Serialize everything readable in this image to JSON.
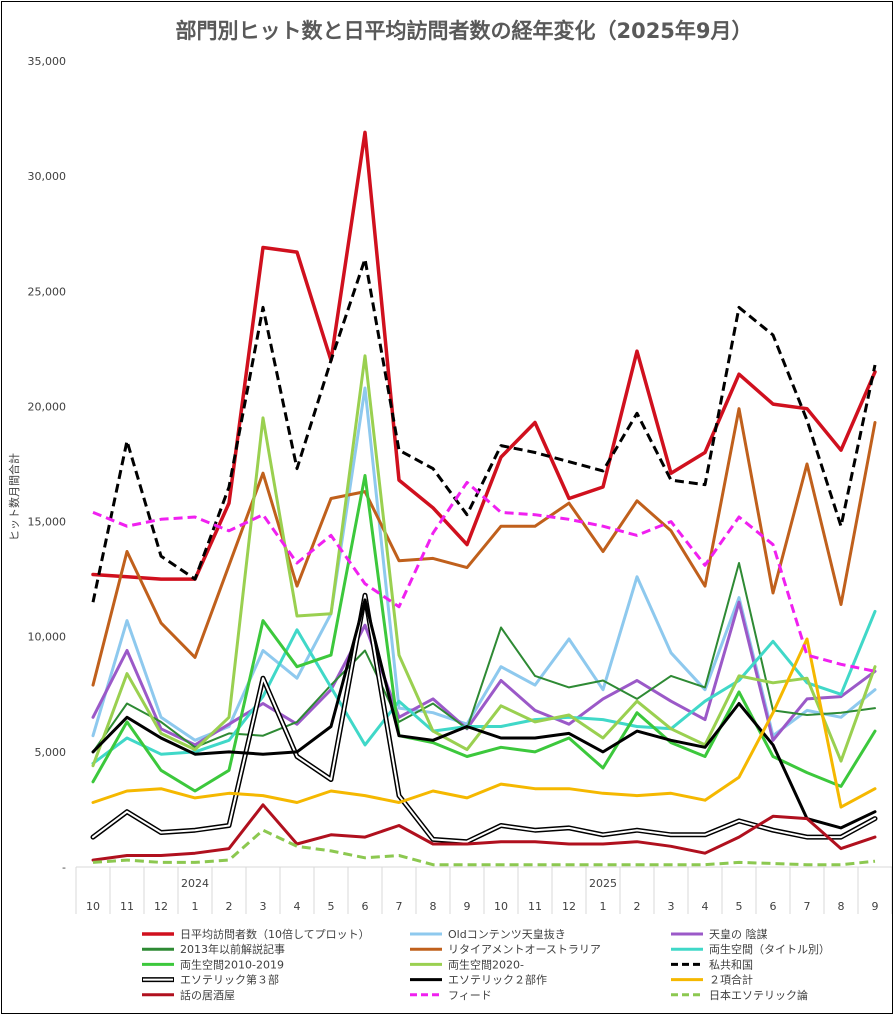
{
  "chart_data": {
    "type": "line",
    "title": "部門別ヒット数と日平均訪問者数の経年変化（2025年9月）",
    "ylabel": "ヒット数月間合計",
    "xlabel": "",
    "ylim": [
      0,
      35000
    ],
    "yticks": [
      {
        "value": 0,
        "label": "-"
      },
      {
        "value": 5000,
        "label": "5,000"
      },
      {
        "value": 10000,
        "label": "10,000"
      },
      {
        "value": 15000,
        "label": "15,000"
      },
      {
        "value": 20000,
        "label": "20,000"
      },
      {
        "value": 25000,
        "label": "25,000"
      },
      {
        "value": 30000,
        "label": "30,000"
      },
      {
        "value": 35000,
        "label": "35,000"
      }
    ],
    "categories": [
      "10",
      "11",
      "12",
      "1",
      "2",
      "3",
      "4",
      "5",
      "6",
      "7",
      "8",
      "9",
      "10",
      "11",
      "12",
      "1",
      "2",
      "3",
      "4",
      "5",
      "6",
      "7",
      "8",
      "9"
    ],
    "year_labels": [
      {
        "label": "2024",
        "index": 3
      },
      {
        "label": "2025",
        "index": 15
      }
    ],
    "grid": false,
    "legend_placement": "bottom",
    "series": [
      {
        "name": "日平均訪問者数（10倍してプロット）",
        "color": "#d0101e",
        "width": 3.5,
        "style": "solid",
        "values": [
          12700,
          12600,
          12500,
          12500,
          15800,
          26900,
          26700,
          22000,
          31900,
          16800,
          15600,
          14000,
          17800,
          19300,
          16000,
          16500,
          22400,
          17100,
          18000,
          21400,
          20100,
          19900,
          18100,
          21500
        ]
      },
      {
        "name": "Oldコンテンツ天皇抜き",
        "color": "#8ec9ee",
        "width": 3,
        "style": "solid",
        "values": [
          5700,
          10700,
          6500,
          5500,
          6100,
          9400,
          8200,
          11000,
          20800,
          6900,
          6700,
          6200,
          8700,
          7900,
          9900,
          7700,
          12600,
          9300,
          7700,
          11700,
          5700,
          6800,
          6500,
          7700
        ]
      },
      {
        "name": "天皇の 陰謀",
        "color": "#9b59c8",
        "width": 3,
        "style": "solid",
        "values": [
          6500,
          9400,
          6000,
          5300,
          6200,
          7100,
          6200,
          7700,
          10500,
          6500,
          7300,
          6000,
          8100,
          6800,
          6200,
          7300,
          8100,
          7200,
          6400,
          11500,
          5500,
          7300,
          7400,
          8500
        ]
      },
      {
        "name": "2013年以前解説記事",
        "color": "#2e8a34",
        "width": 2,
        "style": "solid",
        "values": [
          5000,
          7100,
          6300,
          5200,
          5800,
          5700,
          6300,
          7900,
          9400,
          6300,
          7100,
          6000,
          10400,
          8300,
          7800,
          8100,
          7300,
          8300,
          7800,
          13200,
          6800,
          6600,
          6700,
          6900
        ]
      },
      {
        "name": "リタイアメントオーストラリア",
        "color": "#c0601c",
        "width": 3,
        "style": "solid",
        "values": [
          7900,
          13700,
          10600,
          9100,
          13100,
          17100,
          12200,
          16000,
          16300,
          13300,
          13400,
          13000,
          14800,
          14800,
          15800,
          13700,
          15900,
          14600,
          12200,
          19900,
          11900,
          17500,
          11400,
          19300
        ]
      },
      {
        "name": "両生空間（タイトル別）",
        "color": "#40d8c8",
        "width": 3,
        "style": "solid",
        "values": [
          4500,
          5600,
          4900,
          5000,
          5500,
          7400,
          10300,
          7800,
          5300,
          7200,
          5900,
          6100,
          6100,
          6400,
          6500,
          6400,
          6100,
          6000,
          7200,
          8100,
          9800,
          8000,
          7500,
          11100
        ]
      },
      {
        "name": "両生空間2010-2019",
        "color": "#3cc83c",
        "width": 3,
        "style": "solid",
        "values": [
          3700,
          6300,
          4200,
          3300,
          4200,
          10700,
          8700,
          9200,
          17000,
          5700,
          5400,
          4800,
          5200,
          5000,
          5600,
          4300,
          6700,
          5400,
          4800,
          7600,
          4800,
          4100,
          3500,
          5900
        ]
      },
      {
        "name": "両生空間2020-",
        "color": "#9ad050",
        "width": 3,
        "style": "solid",
        "values": [
          4400,
          8400,
          5800,
          5100,
          6500,
          19500,
          10900,
          11000,
          22200,
          9200,
          5900,
          5100,
          7000,
          6300,
          6600,
          5600,
          7200,
          6000,
          5300,
          8300,
          8000,
          8200,
          4600,
          8700
        ]
      },
      {
        "name": "私共和国",
        "color": "#000000",
        "width": 3,
        "style": "dash",
        "values": [
          11500,
          18500,
          13500,
          12500,
          16500,
          24300,
          17300,
          22000,
          26400,
          18100,
          17300,
          15300,
          18300,
          18000,
          17600,
          17200,
          19700,
          16800,
          16600,
          24300,
          23100,
          19400,
          14800,
          21800
        ]
      },
      {
        "name": "エソテリック第３部",
        "color": "#000000",
        "width": 3.5,
        "style": "double",
        "values": [
          1300,
          2400,
          1500,
          1600,
          1800,
          8200,
          4800,
          3800,
          11800,
          3100,
          1200,
          1100,
          1800,
          1600,
          1700,
          1400,
          1600,
          1400,
          1400,
          2000,
          1600,
          1300,
          1300,
          2100
        ]
      },
      {
        "name": "エソテリック２部作",
        "color": "#000000",
        "width": 3,
        "style": "solid",
        "values": [
          5000,
          6500,
          5600,
          4900,
          5000,
          4900,
          5000,
          6100,
          11600,
          5700,
          5500,
          6100,
          5600,
          5600,
          5800,
          5000,
          5900,
          5500,
          5200,
          7100,
          5300,
          2100,
          1700,
          2400
        ]
      },
      {
        "name": "２項合計",
        "color": "#f5b800",
        "width": 3,
        "style": "solid",
        "values": [
          2800,
          3300,
          3400,
          3000,
          3200,
          3100,
          2800,
          3300,
          3100,
          2800,
          3300,
          3000,
          3600,
          3400,
          3400,
          3200,
          3100,
          3200,
          2900,
          3900,
          6700,
          9900,
          2600,
          3400
        ]
      },
      {
        "name": "話の居酒屋",
        "color": "#b0101e",
        "width": 3,
        "style": "solid",
        "values": [
          300,
          500,
          500,
          600,
          800,
          2700,
          1000,
          1400,
          1300,
          1800,
          1000,
          1000,
          1100,
          1100,
          1000,
          1000,
          1100,
          900,
          600,
          1300,
          2200,
          2100,
          800,
          1300
        ]
      },
      {
        "name": "フィード",
        "color": "#f020f0",
        "width": 3,
        "style": "dash",
        "values": [
          15400,
          14800,
          15100,
          15200,
          14600,
          15300,
          13200,
          14400,
          12300,
          11300,
          14500,
          16700,
          15400,
          15300,
          15100,
          14800,
          14400,
          15000,
          13100,
          15200,
          14000,
          9200,
          8800,
          8500
        ]
      },
      {
        "name": "日本エソテリック論",
        "color": "#8cc850",
        "width": 3,
        "style": "dash",
        "values": [
          200,
          300,
          200,
          200,
          300,
          1600,
          900,
          700,
          400,
          500,
          100,
          100,
          100,
          100,
          100,
          100,
          100,
          100,
          100,
          200,
          150,
          100,
          100,
          250
        ]
      }
    ]
  }
}
